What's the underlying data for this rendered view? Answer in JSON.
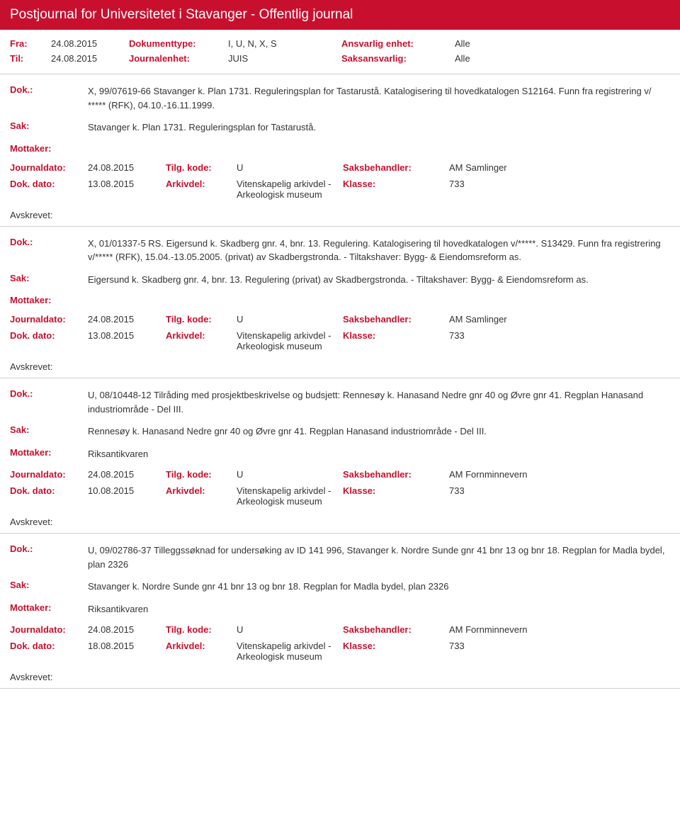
{
  "header_title": "Postjournal for Universitetet i Stavanger - Offentlig journal",
  "meta": {
    "fra_label": "Fra:",
    "fra_value": "24.08.2015",
    "til_label": "Til:",
    "til_value": "24.08.2015",
    "doktype_label": "Dokumenttype:",
    "doktype_value": "I, U, N, X, S",
    "journalenhet_label": "Journalenhet:",
    "journalenhet_value": "JUIS",
    "ansvarlig_label": "Ansvarlig enhet:",
    "ansvarlig_value": "Alle",
    "saksansvarlig_label": "Saksansvarlig:",
    "saksansvarlig_value": "Alle"
  },
  "labels": {
    "dok": "Dok.:",
    "sak": "Sak:",
    "mottaker": "Mottaker:",
    "journaldato": "Journaldato:",
    "tilgkode": "Tilg. kode:",
    "saksbehandler": "Saksbehandler:",
    "dokdato": "Dok. dato:",
    "arkivdel": "Arkivdel:",
    "klasse": "Klasse:",
    "avskrevet": "Avskrevet:"
  },
  "entries": [
    {
      "dok": "X, 99/07619-66 Stavanger k. Plan 1731. Reguleringsplan for Tastarustå. Katalogisering til hovedkatalogen S12164. Funn fra registrering v/ ***** (RFK), 04.10.-16.11.1999.",
      "sak": "Stavanger k. Plan 1731. Reguleringsplan for Tastarustå.",
      "mottaker": "",
      "journaldato": "24.08.2015",
      "tilgkode": "U",
      "saksbehandler": "AM Samlinger",
      "dokdato": "13.08.2015",
      "arkivdel": "Vitenskapelig arkivdel - Arkeologisk museum",
      "klasse": "733"
    },
    {
      "dok": "X, 01/01337-5 RS. Eigersund k. Skadberg gnr. 4, bnr. 13. Regulering. Katalogisering til hovedkatalogen v/*****. S13429. Funn fra registrering v/***** (RFK), 15.04.-13.05.2005. (privat) av Skadbergstronda. - Tiltakshaver: Bygg- & Eiendomsreform as.",
      "sak": "Eigersund k. Skadberg gnr. 4, bnr. 13. Regulering (privat) av Skadbergstronda. - Tiltakshaver: Bygg- & Eiendomsreform as.",
      "mottaker": "",
      "journaldato": "24.08.2015",
      "tilgkode": "U",
      "saksbehandler": "AM Samlinger",
      "dokdato": "13.08.2015",
      "arkivdel": "Vitenskapelig arkivdel - Arkeologisk museum",
      "klasse": "733"
    },
    {
      "dok": "U, 08/10448-12 Tilråding med prosjektbeskrivelse og budsjett: Rennesøy k. Hanasand Nedre gnr 40 og Øvre gnr 41. Regplan Hanasand industriområde - Del III.",
      "sak": "Rennesøy k. Hanasand Nedre gnr 40 og Øvre gnr 41.  Regplan Hanasand industriområde - Del III.",
      "mottaker": "Riksantikvaren",
      "journaldato": "24.08.2015",
      "tilgkode": "U",
      "saksbehandler": "AM Fornminnevern",
      "dokdato": "10.08.2015",
      "arkivdel": "Vitenskapelig arkivdel - Arkeologisk museum",
      "klasse": "733"
    },
    {
      "dok": "U, 09/02786-37 Tilleggssøknad for undersøking av ID 141 996, Stavanger k. Nordre Sunde gnr 41 bnr 13 og bnr 18. Regplan for Madla bydel, plan 2326",
      "sak": "Stavanger k. Nordre Sunde gnr 41 bnr 13 og bnr 18. Regplan for Madla bydel, plan 2326",
      "mottaker": "Riksantikvaren",
      "journaldato": "24.08.2015",
      "tilgkode": "U",
      "saksbehandler": "AM Fornminnevern",
      "dokdato": "18.08.2015",
      "arkivdel": "Vitenskapelig arkivdel - Arkeologisk museum",
      "klasse": "733"
    }
  ]
}
